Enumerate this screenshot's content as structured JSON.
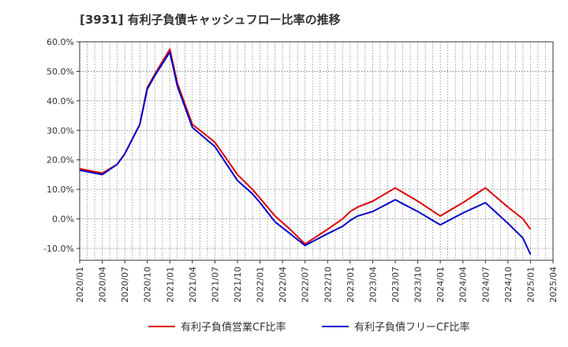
{
  "chart_data": {
    "type": "line",
    "title": "[3931]  有利子負債キャッシュフロー比率の推移",
    "xlabel": "",
    "ylabel": "",
    "ylim": [
      -14,
      60
    ],
    "yticks": [
      -10,
      0,
      10,
      20,
      30,
      40,
      50,
      60
    ],
    "ytick_labels": [
      "-10.0%",
      "0.0%",
      "10.0%",
      "20.0%",
      "30.0%",
      "40.0%",
      "50.0%",
      "60.0%"
    ],
    "xlim": [
      "2020/01",
      "2025/04"
    ],
    "xtick_labels": [
      "2020/01",
      "2020/04",
      "2020/07",
      "2020/10",
      "2021/01",
      "2021/04",
      "2021/07",
      "2021/10",
      "2022/01",
      "2022/04",
      "2022/07",
      "2022/10",
      "2023/01",
      "2023/04",
      "2023/07",
      "2023/10",
      "2024/01",
      "2024/04",
      "2024/07",
      "2024/10",
      "2025/01",
      "2025/04"
    ],
    "grid": true,
    "legend_position": "bottom",
    "x": [
      "2020/01",
      "2020/04",
      "2020/06",
      "2020/07",
      "2020/09",
      "2020/10",
      "2020/11",
      "2021/01",
      "2021/02",
      "2021/03",
      "2021/04",
      "2021/07",
      "2021/10",
      "2021/12",
      "2022/01",
      "2022/03",
      "2022/05",
      "2022/07",
      "2022/10",
      "2022/12",
      "2023/01",
      "2023/02",
      "2023/04",
      "2023/07",
      "2023/10",
      "2024/01",
      "2024/04",
      "2024/07",
      "2024/10",
      "2024/12",
      "2025/01"
    ],
    "series": [
      {
        "name": "有利子負債営業CF比率",
        "color": "#dd0000",
        "values": [
          17.0,
          15.5,
          18.5,
          22.0,
          32.0,
          44.5,
          49.0,
          57.5,
          46.0,
          39.0,
          32.0,
          26.0,
          15.0,
          10.0,
          7.0,
          1.0,
          -3.5,
          -8.5,
          -3.5,
          0.0,
          2.5,
          4.0,
          6.0,
          10.5,
          6.0,
          1.0,
          5.5,
          10.5,
          4.0,
          0.0,
          -3.5
        ]
      },
      {
        "name": "有利子負債フリーCF比率",
        "color": "#0000cc",
        "values": [
          16.5,
          15.0,
          18.5,
          22.0,
          32.0,
          44.0,
          48.5,
          56.5,
          45.0,
          38.0,
          31.0,
          24.5,
          13.0,
          8.5,
          5.5,
          -1.0,
          -5.0,
          -9.0,
          -5.0,
          -2.5,
          -0.5,
          1.0,
          2.5,
          6.5,
          2.5,
          -2.0,
          2.0,
          5.5,
          -1.5,
          -6.5,
          -12.0
        ]
      }
    ]
  }
}
